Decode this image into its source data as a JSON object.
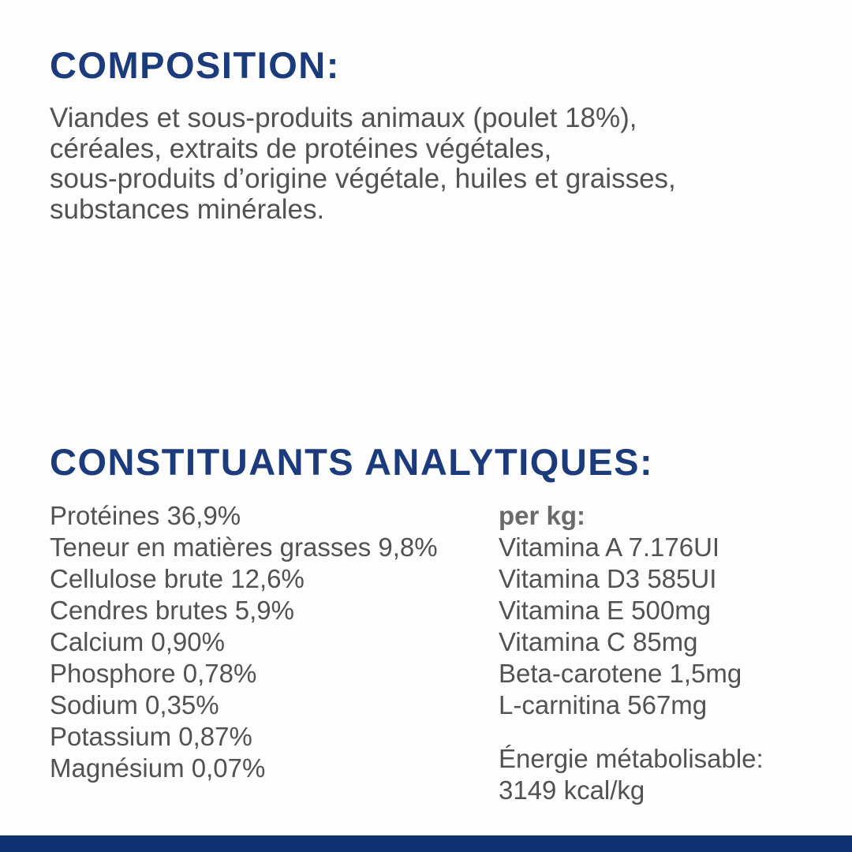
{
  "page": {
    "colors": {
      "navy": "#1b3b7d",
      "gray": "#515254",
      "perkg": "#696a6c",
      "bar": "#0e3170",
      "bg": "#fdfdfd"
    }
  },
  "composition": {
    "heading": "COMPOSITION:",
    "lines": [
      "Viandes et sous-produits animaux (poulet 18%),",
      "céréales, extraits de protéines végétales,",
      "sous-produits d’origine végétale, huiles et graisses,",
      "substances minérales."
    ]
  },
  "analytical": {
    "heading": "CONSTITUANTS ANALYTIQUES:",
    "left_column": [
      "Protéines 36,9%",
      "Teneur en matières grasses 9,8%",
      "Cellulose brute 12,6%",
      "Cendres brutes 5,9%",
      "Calcium 0,90%",
      "Phosphore 0,78%",
      "Sodium 0,35%",
      "Potassium 0,87%",
      "Magnésium 0,07%"
    ],
    "per_kg_label": "per kg:",
    "vitamins": [
      "Vitamina A 7.176UI",
      "Vitamina D3 585UI",
      "Vitamina E 500mg",
      "Vitamina C 85mg",
      "Beta-carotene 1,5mg",
      "L-carnitina 567mg"
    ],
    "energy_lines": [
      "Énergie métabolisable:",
      "3149 kcal/kg"
    ]
  }
}
